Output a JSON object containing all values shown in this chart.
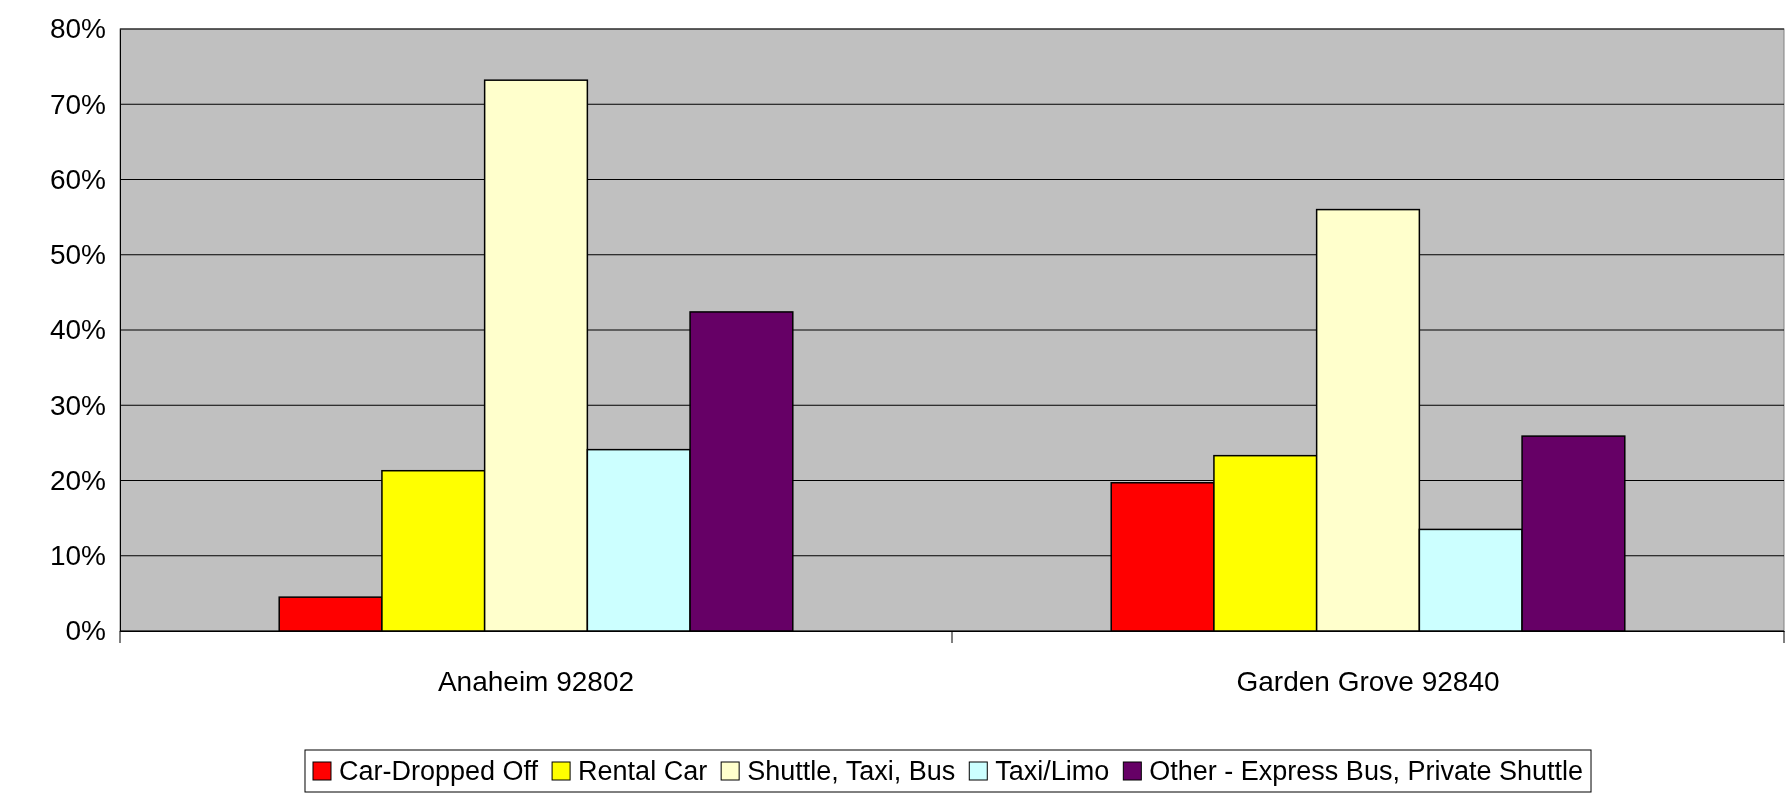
{
  "chart_data": {
    "type": "bar",
    "categories": [
      "Anaheim 92802",
      "Garden Grove 92840"
    ],
    "series": [
      {
        "name": "Car-Dropped Off",
        "color": "#ff0000",
        "values": [
          4.5,
          19.7
        ]
      },
      {
        "name": "Rental Car",
        "color": "#ffff00",
        "values": [
          21.3,
          23.3
        ]
      },
      {
        "name": "Shuttle, Taxi, Bus",
        "color": "#ffffcc",
        "values": [
          73.2,
          56.0
        ]
      },
      {
        "name": "Taxi/Limo",
        "color": "#ccffff",
        "values": [
          24.1,
          13.5
        ]
      },
      {
        "name": "Other - Express Bus, Private Shuttle",
        "color": "#660066",
        "values": [
          42.4,
          25.9
        ]
      }
    ],
    "ylim": [
      0,
      80
    ],
    "yticks": [
      {
        "value": 0,
        "label": "0%"
      },
      {
        "value": 10,
        "label": "10%"
      },
      {
        "value": 20,
        "label": "20%"
      },
      {
        "value": 30,
        "label": "30%"
      },
      {
        "value": 40,
        "label": "40%"
      },
      {
        "value": 50,
        "label": "50%"
      },
      {
        "value": 60,
        "label": "60%"
      },
      {
        "value": 70,
        "label": "70%"
      },
      {
        "value": 80,
        "label": "80%"
      }
    ],
    "grid": "y",
    "legend": "bottom"
  }
}
